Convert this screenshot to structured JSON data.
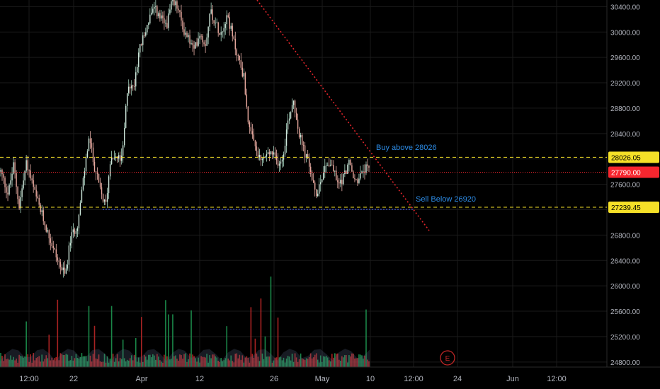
{
  "chart_data": {
    "type": "candlestick",
    "y_axis": {
      "ticks": [
        "30400.00",
        "30000.00",
        "29600.00",
        "29200.00",
        "28800.00",
        "28400.00",
        "28000.00",
        "27600.00",
        "27200.00",
        "26800.00",
        "26400.00",
        "26000.00",
        "25600.00",
        "25200.00",
        "24800.00"
      ],
      "range": [
        24720,
        30460
      ]
    },
    "x_axis": {
      "ticks": [
        "12:00",
        "22",
        "Apr",
        "12",
        "26",
        "May",
        "10",
        "12:00",
        "24",
        "Jun",
        "12:00"
      ]
    },
    "price_labels": {
      "upper": {
        "text": "28026.05",
        "color": "#f5e028",
        "value": 28026.05
      },
      "current": {
        "text": "27790.00",
        "color": "#f7262f",
        "value": 27790.0
      },
      "lower": {
        "text": "27239.45",
        "color": "#f5e028",
        "value": 27239.45
      }
    },
    "annotations": {
      "buy": {
        "text": "Buy above 28026",
        "color": "#2d8ce6"
      },
      "sell": {
        "text": "Sell Below 26920",
        "color": "#2d8ce6"
      }
    },
    "trendline_color": "#e0252b",
    "support_line_color": "#3a4fd6",
    "event_marker": "E",
    "colors": {
      "up": "#26a69a",
      "down": "#ef5350",
      "bg": "#000000",
      "grid": "#1a1a1a"
    },
    "price_path": [
      [
        0,
        27800
      ],
      [
        0.02,
        27450
      ],
      [
        0.035,
        27900
      ],
      [
        0.05,
        27250
      ],
      [
        0.07,
        27950
      ],
      [
        0.09,
        27500
      ],
      [
        0.11,
        27150
      ],
      [
        0.13,
        26800
      ],
      [
        0.155,
        26400
      ],
      [
        0.175,
        26150
      ],
      [
        0.19,
        26750
      ],
      [
        0.21,
        27000
      ],
      [
        0.225,
        27700
      ],
      [
        0.24,
        28350
      ],
      [
        0.25,
        28000
      ],
      [
        0.27,
        27500
      ],
      [
        0.285,
        27250
      ],
      [
        0.3,
        28100
      ],
      [
        0.315,
        28000
      ],
      [
        0.33,
        28000
      ],
      [
        0.345,
        29200
      ],
      [
        0.36,
        29100
      ],
      [
        0.375,
        29700
      ],
      [
        0.39,
        29950
      ],
      [
        0.405,
        30250
      ],
      [
        0.42,
        30350
      ],
      [
        0.435,
        30200
      ],
      [
        0.45,
        30100
      ],
      [
        0.465,
        30450
      ],
      [
        0.48,
        30400
      ],
      [
        0.495,
        30050
      ],
      [
        0.51,
        29900
      ],
      [
        0.525,
        29700
      ],
      [
        0.54,
        30000
      ],
      [
        0.555,
        29800
      ],
      [
        0.57,
        30350
      ],
      [
        0.585,
        30100
      ],
      [
        0.6,
        30000
      ],
      [
        0.615,
        30300
      ],
      [
        0.63,
        29900
      ],
      [
        0.645,
        29600
      ],
      [
        0.66,
        29300
      ],
      [
        0.675,
        28450
      ],
      [
        0.69,
        28200
      ],
      [
        0.705,
        27950
      ],
      [
        0.72,
        28050
      ],
      [
        0.735,
        28100
      ],
      [
        0.75,
        27950
      ],
      [
        0.765,
        28000
      ],
      [
        0.78,
        28600
      ],
      [
        0.795,
        28950
      ],
      [
        0.81,
        28400
      ],
      [
        0.825,
        28100
      ],
      [
        0.84,
        27850
      ],
      [
        0.855,
        27400
      ],
      [
        0.87,
        27700
      ],
      [
        0.885,
        27950
      ],
      [
        0.9,
        27900
      ],
      [
        0.915,
        27600
      ],
      [
        0.93,
        27700
      ],
      [
        0.945,
        27950
      ],
      [
        0.96,
        27650
      ],
      [
        0.975,
        27700
      ],
      [
        0.99,
        27850
      ],
      [
        1.0,
        27790
      ]
    ]
  }
}
